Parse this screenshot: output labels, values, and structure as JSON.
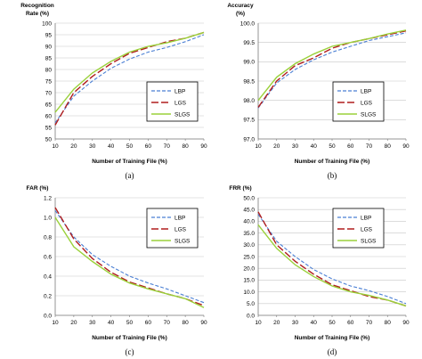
{
  "colors": {
    "LBP": "#4a7fd4",
    "LGS": "#b01e1e",
    "SLGS": "#9ad13a"
  },
  "chart_data": [
    {
      "type": "line",
      "caption": "(a)",
      "ylabel_lines": [
        "Recognition",
        "Rate (%)"
      ],
      "xlabel": "Number of Training File (%)",
      "xlim": [
        10,
        90
      ],
      "ylim": [
        50,
        100
      ],
      "xticks": [
        "10",
        "20",
        "30",
        "40",
        "50",
        "60",
        "70",
        "80",
        "90"
      ],
      "yticks": [
        "50",
        "55",
        "60",
        "65",
        "70",
        "75",
        "80",
        "85",
        "90",
        "95",
        "100"
      ],
      "ytick_values": [
        50,
        55,
        60,
        65,
        70,
        75,
        80,
        85,
        90,
        95,
        100
      ],
      "legend": [
        "LBP",
        "LGS",
        "SLGS"
      ],
      "x": [
        10,
        20,
        30,
        40,
        50,
        60,
        70,
        80,
        90
      ],
      "series": [
        {
          "name": "LBP",
          "values": [
            57.0,
            68.5,
            75.0,
            80.5,
            84.5,
            87.5,
            89.5,
            92.0,
            95.0
          ]
        },
        {
          "name": "LGS",
          "values": [
            56.0,
            70.0,
            77.0,
            82.5,
            87.0,
            89.5,
            92.0,
            93.5,
            96.0
          ]
        },
        {
          "name": "SLGS",
          "values": [
            61.5,
            71.5,
            78.5,
            83.5,
            87.5,
            90.0,
            91.5,
            93.5,
            96.0
          ]
        }
      ]
    },
    {
      "type": "line",
      "caption": "(b)",
      "ylabel_lines": [
        "Accuracy",
        "(%)"
      ],
      "xlabel": "Number of Training File (%)",
      "xlim": [
        10,
        90
      ],
      "ylim": [
        97.0,
        100.0
      ],
      "xticks": [
        "10",
        "20",
        "30",
        "40",
        "50",
        "60",
        "70",
        "80",
        "90"
      ],
      "yticks": [
        "97.0",
        "97.5",
        "98.0",
        "98.5",
        "99.0",
        "99.5",
        "100.0"
      ],
      "ytick_values": [
        97.0,
        97.5,
        98.0,
        98.5,
        99.0,
        99.5,
        100.0
      ],
      "legend": [
        "LBP",
        "LGS",
        "SLGS"
      ],
      "x": [
        10,
        20,
        30,
        40,
        50,
        60,
        70,
        80,
        90
      ],
      "series": [
        {
          "name": "LBP",
          "values": [
            97.8,
            98.45,
            98.8,
            99.05,
            99.25,
            99.4,
            99.55,
            99.65,
            99.75
          ]
        },
        {
          "name": "LGS",
          "values": [
            97.82,
            98.5,
            98.9,
            99.1,
            99.35,
            99.5,
            99.6,
            99.7,
            99.8
          ]
        },
        {
          "name": "SLGS",
          "values": [
            98.0,
            98.6,
            98.95,
            99.2,
            99.4,
            99.5,
            99.6,
            99.72,
            99.82
          ]
        }
      ]
    },
    {
      "type": "line",
      "caption": "(c)",
      "ylabel_lines": [
        "FAR (%)"
      ],
      "xlabel": "Number of Training File (%)",
      "xlim": [
        10,
        90
      ],
      "ylim": [
        0.0,
        1.2
      ],
      "xticks": [
        "10",
        "20",
        "30",
        "40",
        "50",
        "60",
        "70",
        "80",
        "90"
      ],
      "yticks": [
        "0.0",
        "0.2",
        "0.4",
        "0.6",
        "0.8",
        "1.0",
        "1.2"
      ],
      "ytick_values": [
        0.0,
        0.2,
        0.4,
        0.6,
        0.8,
        1.0,
        1.2
      ],
      "legend": [
        "LBP",
        "LGS",
        "SLGS"
      ],
      "x": [
        10,
        20,
        30,
        40,
        50,
        60,
        70,
        80,
        90
      ],
      "series": [
        {
          "name": "LBP",
          "values": [
            1.07,
            0.8,
            0.62,
            0.5,
            0.4,
            0.33,
            0.27,
            0.2,
            0.13
          ]
        },
        {
          "name": "LGS",
          "values": [
            1.1,
            0.78,
            0.58,
            0.44,
            0.34,
            0.28,
            0.22,
            0.17,
            0.1
          ]
        },
        {
          "name": "SLGS",
          "values": [
            1.0,
            0.7,
            0.55,
            0.42,
            0.33,
            0.27,
            0.22,
            0.17,
            0.08
          ]
        }
      ]
    },
    {
      "type": "line",
      "caption": "(d)",
      "ylabel_lines": [
        "FRR (%)"
      ],
      "xlabel": "Number of Training File (%)",
      "xlim": [
        10,
        90
      ],
      "ylim": [
        0.0,
        50.0
      ],
      "xticks": [
        "10",
        "20",
        "30",
        "40",
        "50",
        "60",
        "70",
        "80",
        "90"
      ],
      "yticks": [
        "0.0",
        "5.0",
        "10.0",
        "15.0",
        "20.0",
        "25.0",
        "30.0",
        "35.0",
        "40.0",
        "45.0",
        "50.0"
      ],
      "ytick_values": [
        0,
        5,
        10,
        15,
        20,
        25,
        30,
        35,
        40,
        45,
        50
      ],
      "legend": [
        "LBP",
        "LGS",
        "SLGS"
      ],
      "x": [
        10,
        20,
        30,
        40,
        50,
        60,
        70,
        80,
        90
      ],
      "series": [
        {
          "name": "LBP",
          "values": [
            43.0,
            31.5,
            25.0,
            19.5,
            15.5,
            12.5,
            10.5,
            8.0,
            5.0
          ]
        },
        {
          "name": "LGS",
          "values": [
            44.0,
            30.0,
            23.0,
            17.5,
            13.0,
            10.5,
            8.0,
            6.5,
            4.0
          ]
        },
        {
          "name": "SLGS",
          "values": [
            38.5,
            28.5,
            21.5,
            16.5,
            12.5,
            10.0,
            8.5,
            6.5,
            4.0
          ]
        }
      ]
    }
  ]
}
